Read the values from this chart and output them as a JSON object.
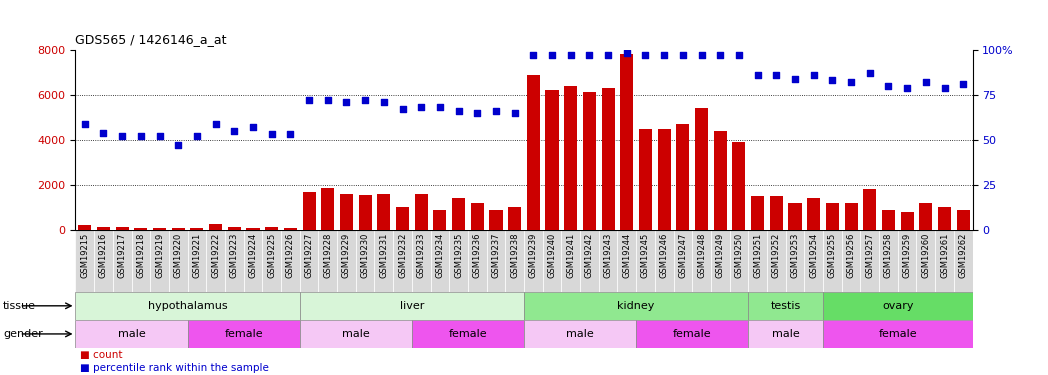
{
  "title": "GDS565 / 1426146_a_at",
  "samples": [
    "GSM19215",
    "GSM19216",
    "GSM19217",
    "GSM19218",
    "GSM19219",
    "GSM19220",
    "GSM19221",
    "GSM19222",
    "GSM19223",
    "GSM19224",
    "GSM19225",
    "GSM19226",
    "GSM19227",
    "GSM19228",
    "GSM19229",
    "GSM19230",
    "GSM19231",
    "GSM19232",
    "GSM19233",
    "GSM19234",
    "GSM19235",
    "GSM19236",
    "GSM19237",
    "GSM19238",
    "GSM19239",
    "GSM19240",
    "GSM19241",
    "GSM19242",
    "GSM19243",
    "GSM19244",
    "GSM19245",
    "GSM19246",
    "GSM19247",
    "GSM19248",
    "GSM19249",
    "GSM19250",
    "GSM19251",
    "GSM19252",
    "GSM19253",
    "GSM19254",
    "GSM19255",
    "GSM19256",
    "GSM19257",
    "GSM19258",
    "GSM19259",
    "GSM19260",
    "GSM19261",
    "GSM19262"
  ],
  "counts": [
    200,
    130,
    120,
    100,
    80,
    70,
    100,
    250,
    120,
    100,
    120,
    100,
    1700,
    1850,
    1600,
    1550,
    1600,
    1000,
    1600,
    900,
    1400,
    1200,
    900,
    1000,
    6900,
    6200,
    6400,
    6150,
    6300,
    7800,
    4500,
    4500,
    4700,
    5400,
    4400,
    3900,
    1500,
    1500,
    1200,
    1400,
    1200,
    1200,
    1800,
    900,
    800,
    1200,
    1000,
    900
  ],
  "percentiles": [
    59,
    54,
    52,
    52,
    52,
    47,
    52,
    59,
    55,
    57,
    53,
    53,
    72,
    72,
    71,
    72,
    71,
    67,
    68,
    68,
    66,
    65,
    66,
    65,
    97,
    97,
    97,
    97,
    97,
    98,
    97,
    97,
    97,
    97,
    97,
    97,
    86,
    86,
    84,
    86,
    83,
    82,
    87,
    80,
    79,
    82,
    79,
    81
  ],
  "tissue_groups": [
    {
      "label": "hypothalamus",
      "start": 0,
      "end": 11,
      "color": "#d8f5d8"
    },
    {
      "label": "liver",
      "start": 12,
      "end": 23,
      "color": "#d8f5d8"
    },
    {
      "label": "kidney",
      "start": 24,
      "end": 35,
      "color": "#90e890"
    },
    {
      "label": "testis",
      "start": 36,
      "end": 39,
      "color": "#90e890"
    },
    {
      "label": "ovary",
      "start": 40,
      "end": 47,
      "color": "#66dd66"
    }
  ],
  "gender_groups": [
    {
      "label": "male",
      "start": 0,
      "end": 5,
      "color": "#f5c8f5"
    },
    {
      "label": "female",
      "start": 6,
      "end": 11,
      "color": "#ee55ee"
    },
    {
      "label": "male",
      "start": 12,
      "end": 17,
      "color": "#f5c8f5"
    },
    {
      "label": "female",
      "start": 18,
      "end": 23,
      "color": "#ee55ee"
    },
    {
      "label": "male",
      "start": 24,
      "end": 29,
      "color": "#f5c8f5"
    },
    {
      "label": "female",
      "start": 30,
      "end": 35,
      "color": "#ee55ee"
    },
    {
      "label": "male",
      "start": 36,
      "end": 39,
      "color": "#f5c8f5"
    },
    {
      "label": "female",
      "start": 40,
      "end": 47,
      "color": "#ee55ee"
    }
  ],
  "bar_color": "#cc0000",
  "dot_color": "#0000cc",
  "ylim_left": [
    0,
    8000
  ],
  "ylim_right": [
    0,
    100
  ],
  "yticks_left": [
    0,
    2000,
    4000,
    6000,
    8000
  ],
  "yticks_right": [
    0,
    25,
    50,
    75,
    100
  ],
  "xtick_bg": "#d8d8d8",
  "title_fontsize": 9,
  "tick_fontsize": 6,
  "axis_fontsize": 8,
  "row_label_fontsize": 8
}
